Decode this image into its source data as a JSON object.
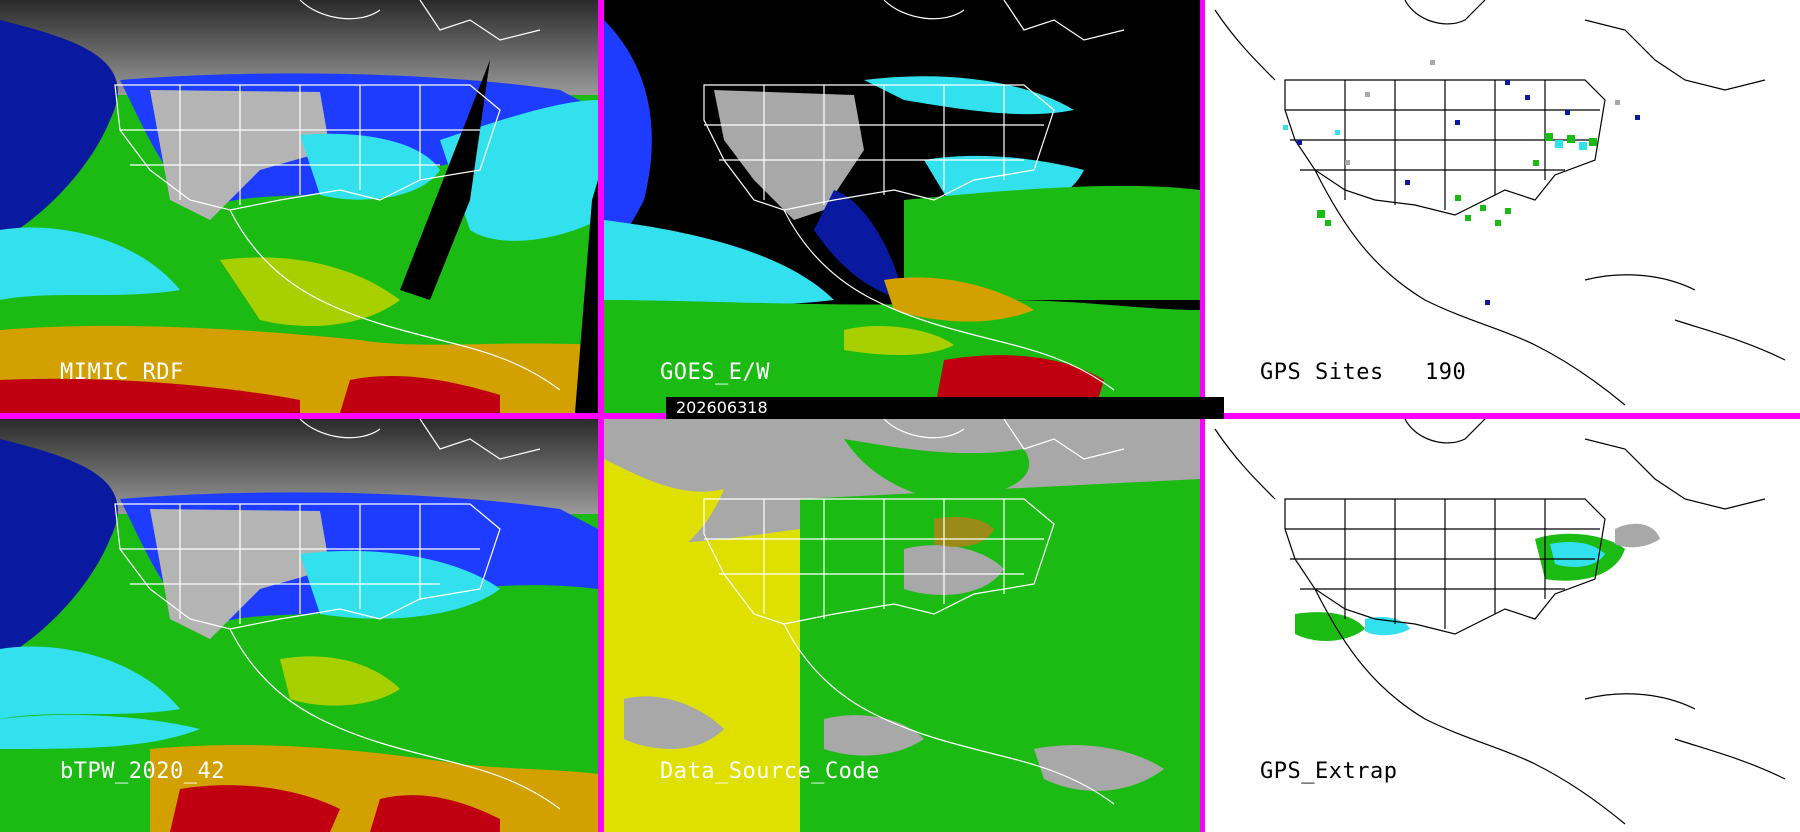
{
  "timestamp": "202606318",
  "panels": {
    "mimic": {
      "label": "MIMIC RDF"
    },
    "goes": {
      "label": "GOES_E/W"
    },
    "gps_sites": {
      "label": "GPS Sites",
      "count": "190"
    },
    "btpw": {
      "label": "bTPW_2020_42"
    },
    "data_source": {
      "label": "Data_Source_Code"
    },
    "gps_extrap": {
      "label": "GPS_Extrap"
    }
  },
  "colors": {
    "frame": "#ff00ff",
    "dark_blue": "#0a1aa0",
    "blue": "#1e3cff",
    "cyan": "#33e0ee",
    "green": "#1bbb14",
    "yellow_green": "#a8d000",
    "yellow": "#e0e000",
    "orange": "#d2a000",
    "red": "#c00010",
    "gray": "#a8a8a8",
    "olive": "#9a8a18"
  }
}
